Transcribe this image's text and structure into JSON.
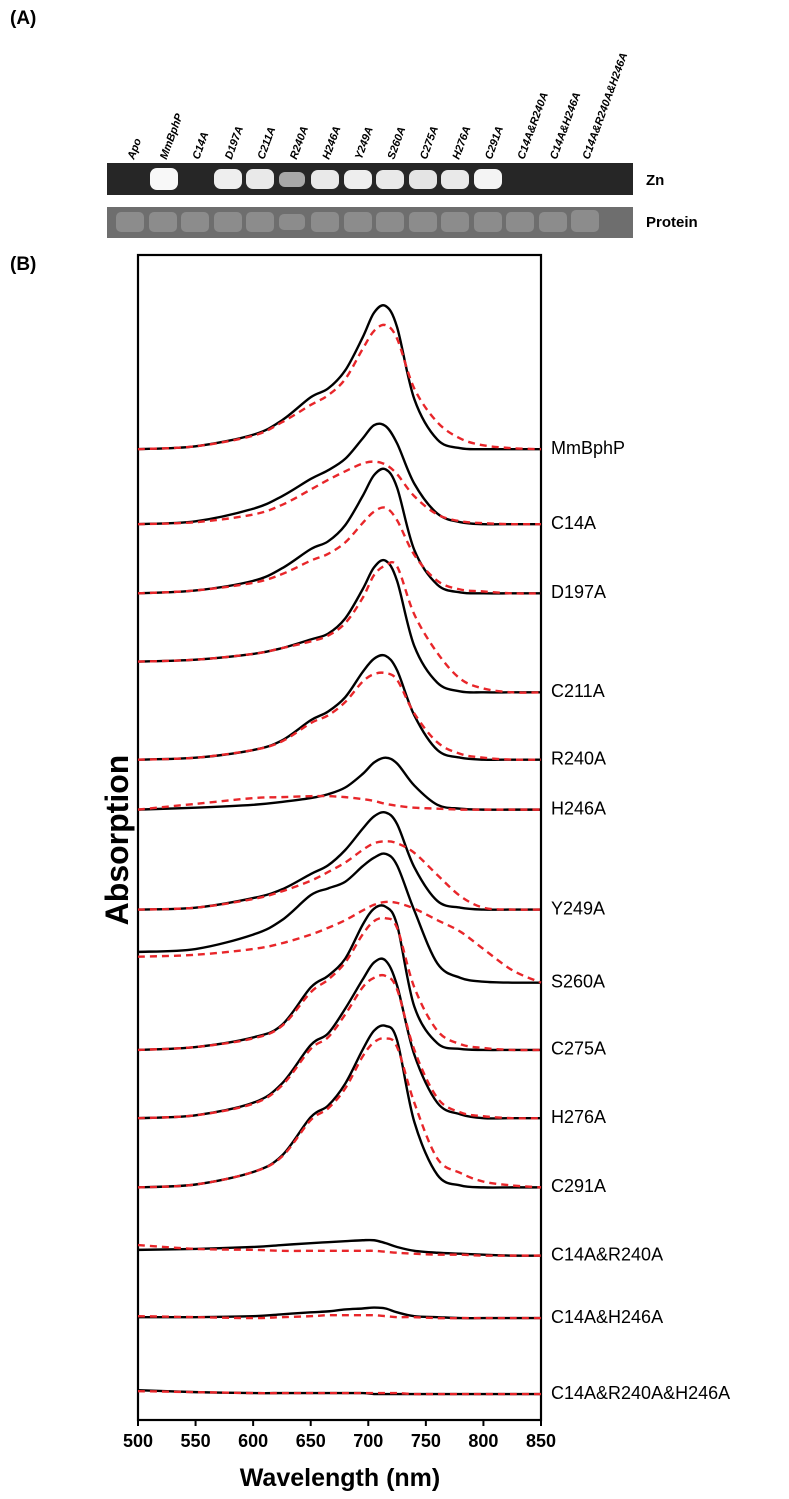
{
  "panel_a": {
    "panel_label": "(A)",
    "lanes": [
      "Apo",
      "MmBphP",
      "C14A",
      "D197A",
      "C211A",
      "R240A",
      "H246A",
      "Y249A",
      "S260A",
      "C275A",
      "H276A",
      "C291A",
      "C14A&R240A",
      "C14A&H246A",
      "C14A&R240A&H246A"
    ],
    "rows": [
      "Zn",
      "Protein"
    ]
  },
  "chart_data": {
    "type": "line",
    "panel_label": "(B)",
    "xlabel": "Wavelength (nm)",
    "ylabel": "Absorption",
    "x": [
      500,
      550,
      600,
      625,
      650,
      665,
      680,
      695,
      705,
      715,
      725,
      740,
      760,
      780,
      800,
      825,
      850
    ],
    "xlim": [
      500,
      850
    ],
    "xticks": [
      500,
      550,
      600,
      650,
      700,
      750,
      800,
      850
    ],
    "ylim": [
      0,
      1212
    ],
    "solid_color": "#000000",
    "dashed_color": "#e8262a",
    "series": [
      {
        "name": "MmBphP",
        "values": [
          1010,
          1013,
          1025,
          1040,
          1064,
          1073,
          1092,
          1126,
          1152,
          1159,
          1137,
          1062,
          1020,
          1011,
          1010,
          1010,
          1010
        ],
        "dashed_values": [
          1010,
          1013,
          1024,
          1038,
          1056,
          1066,
          1083,
          1114,
          1133,
          1139,
          1125,
          1073,
          1038,
          1021,
          1014,
          1011,
          1010
        ]
      },
      {
        "name": "C14A",
        "values": [
          932,
          935,
          948,
          961,
          979,
          988,
          1000,
          1021,
          1035,
          1034,
          1016,
          974,
          943,
          934,
          932,
          932,
          932
        ],
        "dashed_values": [
          932,
          934,
          942,
          952,
          968,
          978,
          987,
          995,
          997,
          994,
          984,
          961,
          942,
          935,
          933,
          932,
          932
        ]
      },
      {
        "name": "D197A",
        "values": [
          860,
          863,
          873,
          886,
          906,
          914,
          931,
          961,
          983,
          989,
          970,
          905,
          869,
          861,
          860,
          860,
          860
        ],
        "dashed_values": [
          860,
          863,
          871,
          880,
          894,
          901,
          913,
          933,
          945,
          949,
          936,
          900,
          873,
          864,
          862,
          860,
          860
        ]
      },
      {
        "name": "C211A",
        "values": [
          789,
          791,
          797,
          803,
          812,
          818,
          834,
          864,
          887,
          894,
          873,
          805,
          767,
          758,
          757,
          757,
          757
        ],
        "dashed_values": [
          789,
          791,
          797,
          803,
          810,
          816,
          829,
          855,
          879,
          889,
          888,
          838,
          798,
          771,
          761,
          757,
          757
        ]
      },
      {
        "name": "R240A",
        "values": [
          687,
          689,
          697,
          707,
          728,
          737,
          752,
          778,
          792,
          795,
          780,
          733,
          697,
          689,
          687,
          687,
          687
        ],
        "dashed_values": [
          687,
          689,
          697,
          706,
          725,
          733,
          747,
          768,
          776,
          777,
          770,
          735,
          705,
          693,
          689,
          687,
          687
        ]
      },
      {
        "name": "H246A",
        "values": [
          635,
          637,
          640,
          643,
          647,
          651,
          658,
          672,
          684,
          689,
          683,
          660,
          640,
          636,
          635,
          635,
          635
        ],
        "dashed_values": [
          635,
          641,
          647,
          648,
          649,
          649,
          648,
          646,
          644,
          641,
          639,
          637,
          636,
          635,
          635,
          635,
          635
        ]
      },
      {
        "name": "Y249A",
        "values": [
          531,
          533,
          543,
          552,
          568,
          577,
          593,
          615,
          628,
          632,
          620,
          575,
          540,
          533,
          531,
          531,
          531
        ],
        "dashed_values": [
          531,
          533,
          542,
          550,
          561,
          570,
          580,
          593,
          600,
          602,
          600,
          590,
          567,
          545,
          533,
          531,
          531
        ]
      },
      {
        "name": "S260A",
        "values": [
          487,
          490,
          505,
          520,
          546,
          553,
          560,
          576,
          585,
          589,
          577,
          530,
          475,
          460,
          456,
          455,
          455
        ],
        "dashed_values": [
          482,
          484,
          490,
          496,
          505,
          512,
          520,
          530,
          536,
          539,
          538,
          532,
          520,
          508,
          490,
          468,
          455
        ]
      },
      {
        "name": "C275A",
        "values": [
          385,
          388,
          398,
          411,
          450,
          462,
          480,
          515,
          532,
          534,
          515,
          430,
          392,
          386,
          385,
          385,
          385
        ],
        "dashed_values": [
          385,
          388,
          397,
          410,
          445,
          458,
          476,
          505,
          519,
          522,
          512,
          450,
          405,
          391,
          387,
          385,
          385
        ]
      },
      {
        "name": "H276A",
        "values": [
          314,
          317,
          330,
          350,
          390,
          402,
          428,
          458,
          476,
          478,
          452,
          380,
          330,
          318,
          314,
          314,
          314
        ],
        "dashed_values": [
          314,
          317,
          329,
          348,
          386,
          398,
          422,
          450,
          460,
          462,
          448,
          385,
          335,
          320,
          316,
          314,
          314
        ]
      },
      {
        "name": "C291A",
        "values": [
          242,
          245,
          258,
          275,
          315,
          327,
          350,
          385,
          405,
          410,
          395,
          310,
          255,
          244,
          242,
          242,
          242
        ],
        "dashed_values": [
          242,
          245,
          258,
          274,
          312,
          324,
          345,
          378,
          393,
          397,
          388,
          330,
          272,
          257,
          248,
          244,
          242
        ]
      },
      {
        "name": "C14A&R240A",
        "values": [
          177,
          178,
          180,
          182,
          184,
          185,
          186,
          187,
          187,
          184,
          180,
          176,
          174,
          173,
          172,
          171,
          171
        ],
        "dashed_values": [
          182,
          178,
          177,
          176,
          176,
          176,
          176,
          176,
          176,
          175,
          174,
          173,
          172,
          172,
          171,
          171,
          171
        ]
      },
      {
        "name": "C14A&H246A",
        "values": [
          107,
          107,
          108,
          110,
          112,
          113,
          115,
          116,
          117,
          116,
          112,
          108,
          107,
          106,
          106,
          106,
          106
        ],
        "dashed_values": [
          108,
          107,
          106,
          107,
          108,
          109,
          109,
          109,
          109,
          108,
          107,
          107,
          106,
          106,
          106,
          106,
          106
        ]
      },
      {
        "name": "C14A&R240A&H246A",
        "values": [
          31,
          29,
          28,
          28,
          28,
          28,
          28,
          28,
          27,
          27,
          27,
          27,
          27,
          27,
          27,
          27,
          27
        ],
        "dashed_values": [
          30,
          29,
          28,
          28,
          28,
          28,
          28,
          28,
          28,
          28,
          28,
          27,
          27,
          27,
          27,
          27,
          27
        ]
      }
    ]
  }
}
